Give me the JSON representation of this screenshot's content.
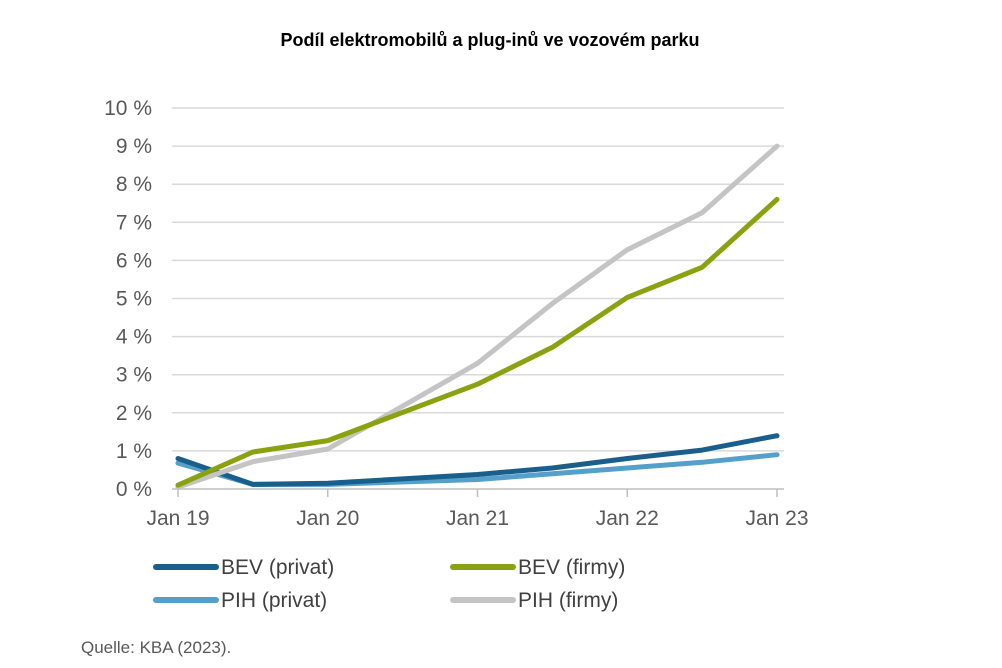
{
  "chart_data": {
    "type": "line",
    "title": "Podíl elektromobilů a plug-inů ve vozovém parku",
    "x": [
      "Jan 19",
      "Jul 19",
      "Jan 20",
      "Jul 20",
      "Jan 21",
      "Jul 21",
      "Jan 22",
      "Jul 22",
      "Jan 23"
    ],
    "x_ticks": [
      "Jan 19",
      "Jan 20",
      "Jan 21",
      "Jan 22",
      "Jan 23"
    ],
    "y_ticks": [
      "0 %",
      "1 %",
      "2 %",
      "3 %",
      "4 %",
      "5 %",
      "6 %",
      "7 %",
      "8 %",
      "9 %",
      "10 %"
    ],
    "ylim": [
      0,
      10
    ],
    "xlabel": "",
    "ylabel": "",
    "grid": true,
    "legend_position": "bottom",
    "series": [
      {
        "name": "BEV (privat)",
        "color": "#1a5f8c",
        "values": [
          0.8,
          0.12,
          0.15,
          null,
          0.38,
          0.55,
          0.8,
          1.02,
          1.4
        ]
      },
      {
        "name": "BEV  (firmy)",
        "color": "#8aa20f",
        "values": [
          0.1,
          0.97,
          1.27,
          null,
          2.75,
          3.72,
          5.03,
          5.82,
          7.6
        ]
      },
      {
        "name": "PIH (privat)",
        "color": "#55a0cb",
        "values": [
          0.68,
          0.12,
          0.12,
          null,
          0.25,
          0.4,
          0.55,
          0.7,
          0.9
        ]
      },
      {
        "name": "PIH (firmy)",
        "color": "#c4c4c4",
        "values": [
          0.05,
          0.72,
          1.05,
          null,
          3.3,
          4.87,
          6.28,
          7.25,
          9.0
        ]
      }
    ]
  },
  "source_note": "Quelle: KBA (2023)."
}
